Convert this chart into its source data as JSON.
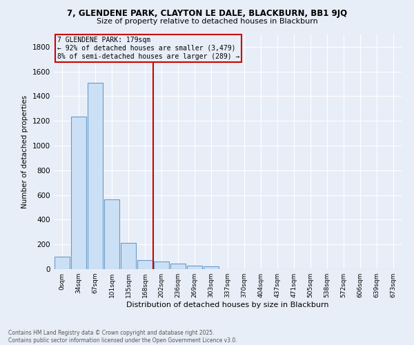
{
  "title_line1": "7, GLENDENE PARK, CLAYTON LE DALE, BLACKBURN, BB1 9JQ",
  "title_line2": "Size of property relative to detached houses in Blackburn",
  "xlabel": "Distribution of detached houses by size in Blackburn",
  "ylabel": "Number of detached properties",
  "categories": [
    "0sqm",
    "34sqm",
    "67sqm",
    "101sqm",
    "135sqm",
    "168sqm",
    "202sqm",
    "236sqm",
    "269sqm",
    "303sqm",
    "337sqm",
    "370sqm",
    "404sqm",
    "437sqm",
    "471sqm",
    "505sqm",
    "538sqm",
    "572sqm",
    "606sqm",
    "639sqm",
    "673sqm"
  ],
  "values": [
    100,
    1235,
    1510,
    565,
    210,
    75,
    60,
    45,
    30,
    20,
    0,
    0,
    0,
    0,
    0,
    0,
    0,
    0,
    0,
    0,
    0
  ],
  "bar_color_face": "#cce0f5",
  "bar_color_edge": "#6699cc",
  "bar_linewidth": 0.8,
  "vline_x": 5.5,
  "vline_color": "#cc0000",
  "vline_lw": 1.5,
  "annotation_title": "7 GLENDENE PARK: 179sqm",
  "annotation_line1": "← 92% of detached houses are smaller (3,479)",
  "annotation_line2": "8% of semi-detached houses are larger (289) →",
  "annotation_box_color": "#cc0000",
  "ylim": [
    0,
    1900
  ],
  "yticks": [
    0,
    200,
    400,
    600,
    800,
    1000,
    1200,
    1400,
    1600,
    1800
  ],
  "bg_color": "#e8eef8",
  "grid_color": "#ffffff",
  "footer_line1": "Contains HM Land Registry data © Crown copyright and database right 2025.",
  "footer_line2": "Contains public sector information licensed under the Open Government Licence v3.0."
}
